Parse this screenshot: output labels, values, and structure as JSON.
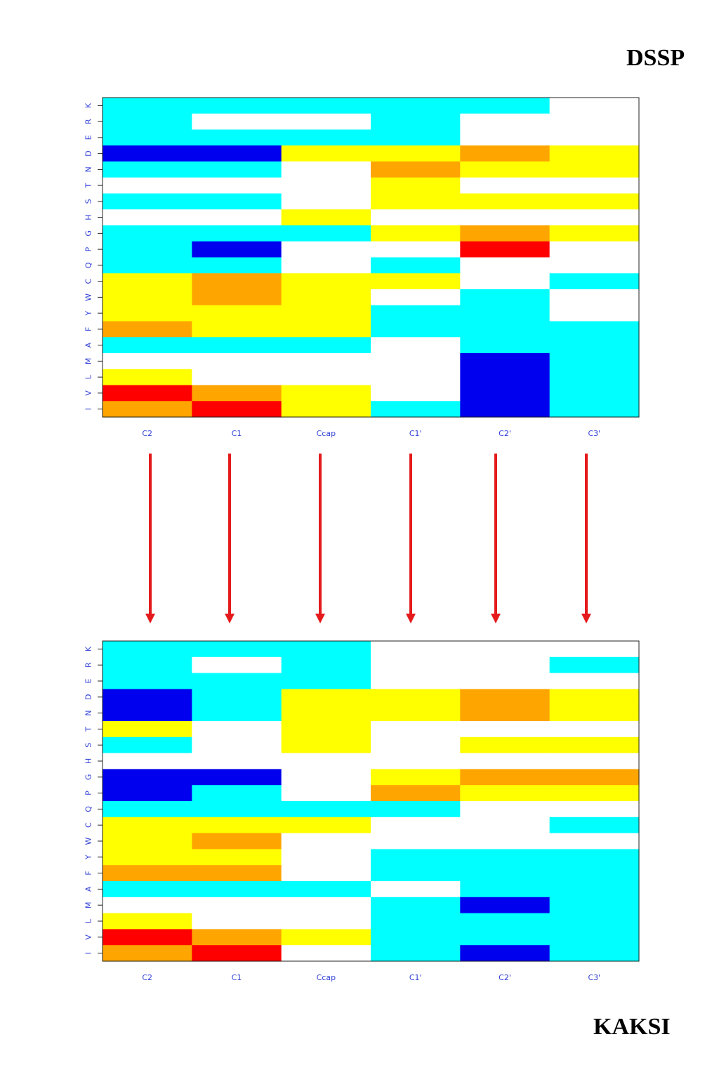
{
  "panel_titles": {
    "top": "DSSP",
    "bottom": "KAKSI"
  },
  "colors": {
    "0": "#ffffff",
    "1": "#00ffff",
    "2": "#0000ee",
    "3": "#ffff00",
    "4": "#ffa500",
    "5": "#ff0000",
    "arrow": "#e41a1c",
    "tick_text": "#2f3fd6"
  },
  "chart_data": [
    {
      "type": "heatmap",
      "title": "DSSP",
      "x_categories": [
        "C2",
        "C1",
        "Ccap",
        "C1'",
        "C2'",
        "C3'"
      ],
      "y_categories": [
        "K",
        "R",
        "E",
        "D",
        "N",
        "T",
        "S",
        "H",
        "G",
        "P",
        "Q",
        "C",
        "W",
        "Y",
        "F",
        "A",
        "M",
        "L",
        "V",
        "I"
      ],
      "color_legend": {
        "0": "white",
        "1": "cyan",
        "2": "blue",
        "3": "yellow",
        "4": "orange",
        "5": "red"
      },
      "values": [
        [
          1,
          1,
          1,
          1,
          1,
          0
        ],
        [
          1,
          0,
          0,
          1,
          0,
          0
        ],
        [
          1,
          1,
          1,
          1,
          0,
          0
        ],
        [
          2,
          2,
          3,
          3,
          4,
          3
        ],
        [
          1,
          1,
          0,
          4,
          3,
          3
        ],
        [
          0,
          0,
          0,
          3,
          0,
          0
        ],
        [
          1,
          1,
          0,
          3,
          3,
          3
        ],
        [
          0,
          0,
          3,
          0,
          0,
          0
        ],
        [
          1,
          1,
          1,
          3,
          4,
          3
        ],
        [
          1,
          2,
          0,
          0,
          5,
          0
        ],
        [
          1,
          1,
          0,
          1,
          0,
          0
        ],
        [
          3,
          4,
          3,
          3,
          0,
          1
        ],
        [
          3,
          4,
          3,
          0,
          1,
          0
        ],
        [
          3,
          3,
          3,
          1,
          1,
          0
        ],
        [
          4,
          3,
          3,
          1,
          1,
          1
        ],
        [
          1,
          1,
          1,
          0,
          1,
          1
        ],
        [
          0,
          0,
          0,
          0,
          2,
          1
        ],
        [
          3,
          0,
          0,
          0,
          2,
          1
        ],
        [
          5,
          4,
          3,
          0,
          2,
          1
        ],
        [
          4,
          5,
          3,
          1,
          2,
          1
        ]
      ]
    },
    {
      "type": "heatmap",
      "title": "KAKSI",
      "x_categories": [
        "C2",
        "C1",
        "Ccap",
        "C1'",
        "C2'",
        "C3'"
      ],
      "y_categories": [
        "K",
        "R",
        "E",
        "D",
        "N",
        "T",
        "S",
        "H",
        "G",
        "P",
        "Q",
        "C",
        "W",
        "Y",
        "F",
        "A",
        "M",
        "L",
        "V",
        "I"
      ],
      "color_legend": {
        "0": "white",
        "1": "cyan",
        "2": "blue",
        "3": "yellow",
        "4": "orange",
        "5": "red"
      },
      "values": [
        [
          1,
          1,
          1,
          0,
          0,
          0
        ],
        [
          1,
          0,
          1,
          0,
          0,
          1
        ],
        [
          1,
          1,
          1,
          0,
          0,
          0
        ],
        [
          2,
          1,
          3,
          3,
          4,
          3
        ],
        [
          2,
          1,
          3,
          3,
          4,
          3
        ],
        [
          3,
          0,
          3,
          0,
          0,
          0
        ],
        [
          1,
          0,
          3,
          0,
          3,
          3
        ],
        [
          0,
          0,
          0,
          0,
          0,
          0
        ],
        [
          2,
          2,
          0,
          3,
          4,
          4
        ],
        [
          2,
          1,
          0,
          4,
          3,
          3
        ],
        [
          1,
          1,
          1,
          1,
          0,
          0
        ],
        [
          3,
          3,
          3,
          0,
          0,
          1
        ],
        [
          3,
          4,
          0,
          0,
          0,
          0
        ],
        [
          3,
          3,
          0,
          1,
          1,
          1
        ],
        [
          4,
          4,
          0,
          1,
          1,
          1
        ],
        [
          1,
          1,
          1,
          0,
          1,
          1
        ],
        [
          0,
          0,
          0,
          1,
          2,
          1
        ],
        [
          3,
          0,
          0,
          1,
          1,
          1
        ],
        [
          5,
          4,
          3,
          1,
          1,
          1
        ],
        [
          4,
          5,
          0,
          1,
          2,
          1
        ]
      ]
    }
  ]
}
